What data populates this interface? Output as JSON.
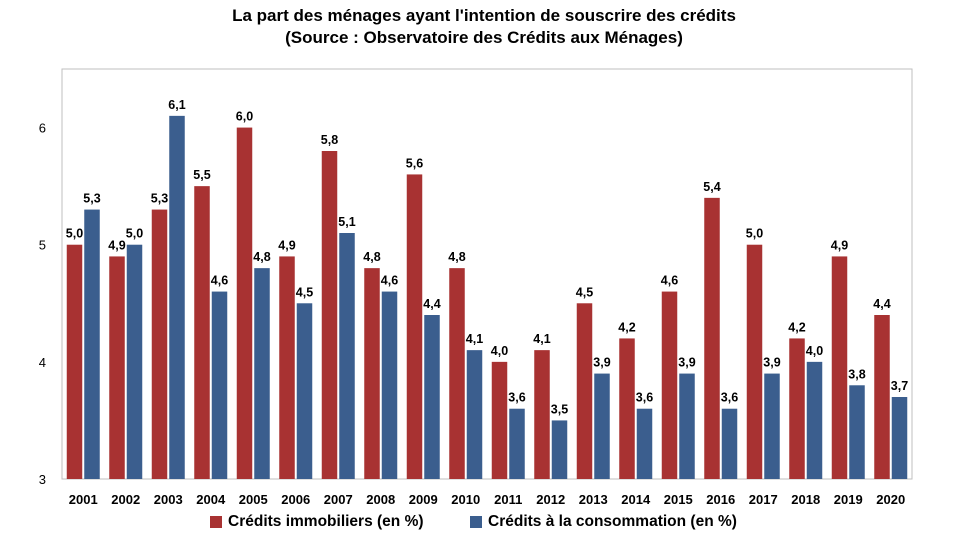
{
  "title": "La part des ménages ayant l'intention de souscrire des crédits",
  "subtitle": "(Source : Observatoire des Crédits aux Ménages)",
  "colors": {
    "immobiliers": "#a83232",
    "consommation": "#3b5e8e"
  },
  "chart_data": {
    "type": "bar",
    "title": "La part des ménages ayant l'intention de souscrire des crédits",
    "subtitle": "(Source : Observatoire des Crédits aux Ménages)",
    "xlabel": "",
    "ylabel": "",
    "ylim": [
      3,
      6.5
    ],
    "yticks": [
      "3",
      "4",
      "5",
      "6"
    ],
    "grid": false,
    "legend": "bottom",
    "categories": [
      "2001",
      "2002",
      "2003",
      "2004",
      "2005",
      "2006",
      "2007",
      "2008",
      "2009",
      "2010",
      "2011",
      "2012",
      "2013",
      "2014",
      "2015",
      "2016",
      "2017",
      "2018",
      "2019",
      "2020"
    ],
    "series": [
      {
        "name": "Crédits immobiliers (en %)",
        "values": [
          5.0,
          4.9,
          5.3,
          5.5,
          6.0,
          4.9,
          5.8,
          4.8,
          5.6,
          4.8,
          4.0,
          4.1,
          4.5,
          4.2,
          4.6,
          5.4,
          5.0,
          4.2,
          4.9,
          4.4
        ],
        "labels": [
          "5,0",
          "4,9",
          "5,3",
          "5,5",
          "6,0",
          "4,9",
          "5,8",
          "4,8",
          "5,6",
          "4,8",
          "4,0",
          "4,1",
          "4,5",
          "4,2",
          "4,6",
          "5,4",
          "5,0",
          "4,2",
          "4,9",
          "4,4"
        ]
      },
      {
        "name": "Crédits à la consommation (en %)",
        "values": [
          5.3,
          5.0,
          6.1,
          4.6,
          4.8,
          4.5,
          5.1,
          4.6,
          4.4,
          4.1,
          3.6,
          3.5,
          3.9,
          3.6,
          3.9,
          3.6,
          3.9,
          4.0,
          3.8,
          3.7
        ],
        "labels": [
          "5,3",
          "5,0",
          "6,1",
          "4,6",
          "4,8",
          "4,5",
          "5,1",
          "4,6",
          "4,4",
          "4,1",
          "3,6",
          "3,5",
          "3,9",
          "3,6",
          "3,9",
          "3,6",
          "3,9",
          "4,0",
          "3,8",
          "3,7"
        ]
      }
    ]
  }
}
